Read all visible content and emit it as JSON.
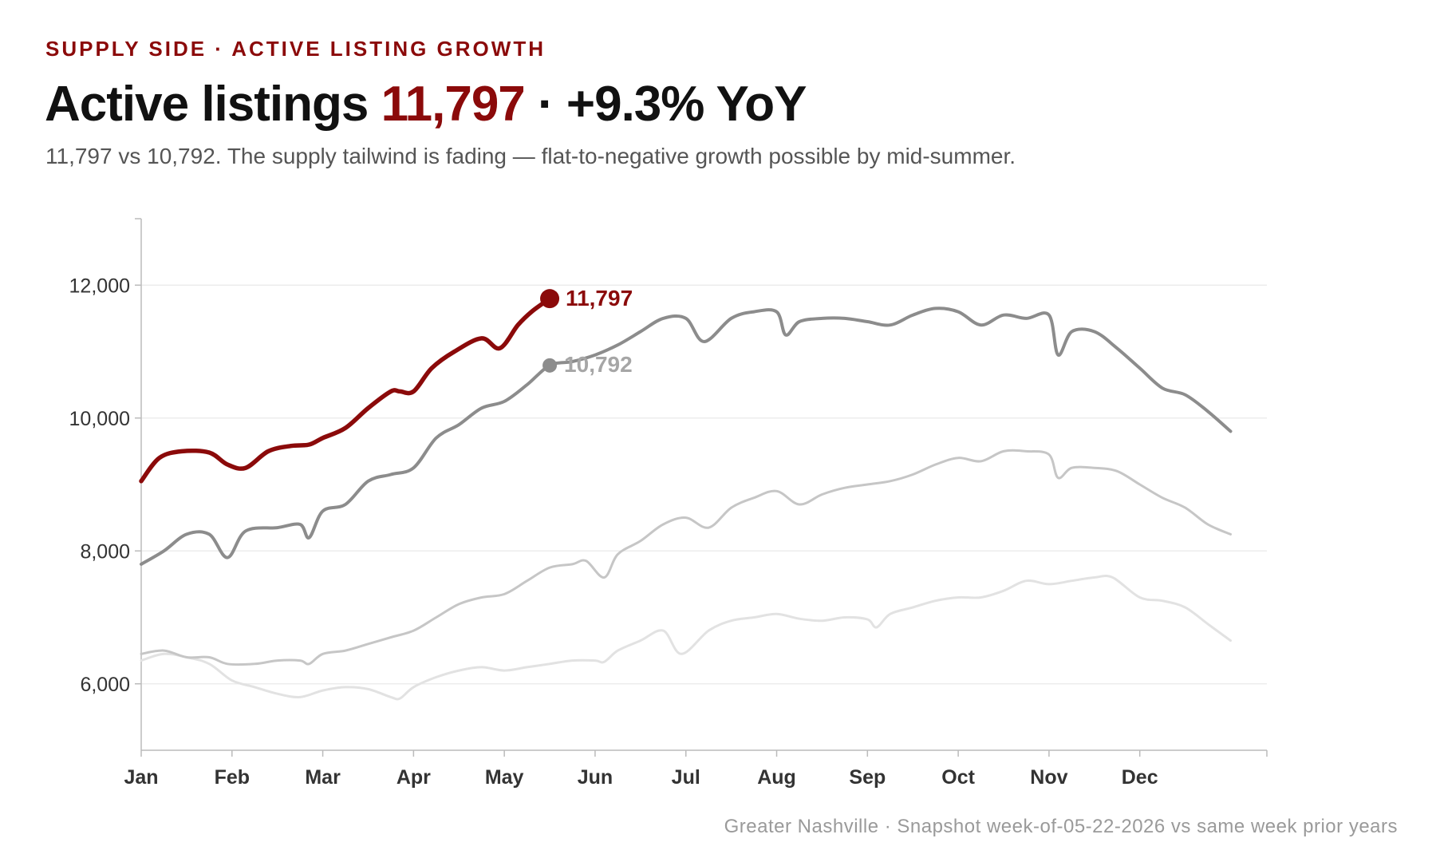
{
  "header": {
    "kicker": "SUPPLY SIDE · ACTIVE LISTING GROWTH",
    "title_prefix": "Active listings ",
    "title_value": "11,797",
    "title_suffix": " · +9.3% YoY",
    "subtitle": "11,797 vs 10,792. The supply tailwind is fading — flat-to-negative growth possible by mid-summer."
  },
  "footer": {
    "note": "Greater Nashville · Snapshot week-of-05-22-2026 vs same week prior years"
  },
  "chart_data": {
    "type": "line",
    "title": "",
    "xlabel": "",
    "ylabel": "",
    "ylim": [
      5000,
      13000
    ],
    "xlim": [
      0,
      12.4
    ],
    "yticks": [
      6000,
      8000,
      10000,
      12000
    ],
    "yticks_labels": [
      "6,000",
      "8,000",
      "10,000",
      "12,000"
    ],
    "xticks": [
      0,
      1,
      2,
      3,
      4,
      5,
      6,
      7,
      8,
      9,
      10,
      11
    ],
    "xticks_labels": [
      "Jan",
      "Feb",
      "Mar",
      "Apr",
      "May",
      "Jun",
      "Jul",
      "Aug",
      "Sep",
      "Oct",
      "Nov",
      "Dec"
    ],
    "grid": "horizontal",
    "legend": "none",
    "colors": {
      "current": "#8b0a0a",
      "prior_1": "#8c8c8c",
      "prior_2": "#c6c6c6",
      "prior_3": "#e2e2e2",
      "grid": "#ececec",
      "axis": "#bbbbbb"
    },
    "series": [
      {
        "key": "prior_3",
        "x": [
          0,
          0.25,
          0.5,
          0.75,
          1,
          1.25,
          1.5,
          1.75,
          2,
          2.25,
          2.5,
          2.75,
          2.85,
          3,
          3.25,
          3.5,
          3.75,
          4,
          4.25,
          4.5,
          4.75,
          5,
          5.1,
          5.25,
          5.5,
          5.75,
          5.95,
          6.25,
          6.5,
          6.75,
          7,
          7.25,
          7.5,
          7.75,
          8,
          8.1,
          8.25,
          8.5,
          8.75,
          9,
          9.25,
          9.5,
          9.75,
          10,
          10.25,
          10.5,
          10.7,
          11,
          11.25,
          11.5,
          11.75,
          12
        ],
        "y": [
          6350,
          6450,
          6400,
          6300,
          6050,
          5950,
          5850,
          5800,
          5900,
          5950,
          5920,
          5800,
          5780,
          5950,
          6100,
          6200,
          6250,
          6200,
          6250,
          6300,
          6350,
          6350,
          6330,
          6500,
          6650,
          6800,
          6450,
          6800,
          6950,
          7000,
          7050,
          6980,
          6950,
          7000,
          6970,
          6850,
          7050,
          7150,
          7250,
          7300,
          7300,
          7400,
          7550,
          7500,
          7550,
          7600,
          7600,
          7300,
          7250,
          7150,
          6900,
          6650
        ]
      },
      {
        "key": "prior_2",
        "x": [
          0,
          0.25,
          0.5,
          0.75,
          0.95,
          1.25,
          1.5,
          1.75,
          1.85,
          2,
          2.25,
          2.5,
          2.75,
          3,
          3.25,
          3.5,
          3.75,
          4,
          4.25,
          4.5,
          4.75,
          4.9,
          5.1,
          5.25,
          5.5,
          5.75,
          6,
          6.25,
          6.5,
          6.75,
          7,
          7.25,
          7.5,
          7.75,
          8,
          8.25,
          8.5,
          8.75,
          9,
          9.25,
          9.5,
          9.75,
          10,
          10.1,
          10.25,
          10.5,
          10.75,
          11,
          11.25,
          11.5,
          11.75,
          12
        ],
        "y": [
          6450,
          6500,
          6400,
          6400,
          6300,
          6300,
          6350,
          6350,
          6300,
          6450,
          6500,
          6600,
          6700,
          6800,
          7000,
          7200,
          7300,
          7350,
          7550,
          7750,
          7800,
          7850,
          7600,
          7950,
          8150,
          8400,
          8500,
          8350,
          8650,
          8800,
          8900,
          8700,
          8850,
          8950,
          9000,
          9050,
          9150,
          9300,
          9400,
          9350,
          9500,
          9500,
          9450,
          9100,
          9250,
          9250,
          9200,
          9000,
          8800,
          8650,
          8400,
          8250
        ]
      },
      {
        "key": "prior_1",
        "label": "10,792",
        "x": [
          0,
          0.25,
          0.5,
          0.75,
          0.95,
          1.15,
          1.5,
          1.75,
          1.85,
          2,
          2.25,
          2.5,
          2.75,
          3,
          3.25,
          3.5,
          3.75,
          4,
          4.25,
          4.5,
          4.75,
          5,
          5.25,
          5.5,
          5.75,
          6,
          6.2,
          6.5,
          6.75,
          7,
          7.1,
          7.25,
          7.5,
          7.75,
          8,
          8.25,
          8.5,
          8.75,
          9,
          9.25,
          9.5,
          9.75,
          10,
          10.1,
          10.25,
          10.5,
          10.75,
          11,
          11.25,
          11.5,
          11.75,
          12
        ],
        "y": [
          7800,
          8000,
          8250,
          8250,
          7900,
          8300,
          8350,
          8400,
          8200,
          8600,
          8700,
          9050,
          9150,
          9250,
          9700,
          9900,
          10150,
          10250,
          10500,
          10792,
          10850,
          10950,
          11100,
          11300,
          11500,
          11500,
          11150,
          11500,
          11600,
          11600,
          11250,
          11450,
          11500,
          11500,
          11450,
          11400,
          11550,
          11650,
          11600,
          11400,
          11550,
          11500,
          11550,
          10950,
          11300,
          11300,
          11050,
          10750,
          10450,
          10350,
          10100,
          9800
        ],
        "end_index": 19
      },
      {
        "key": "current",
        "label": "11,797",
        "x": [
          0,
          0.2,
          0.45,
          0.75,
          0.95,
          1.15,
          1.4,
          1.65,
          1.85,
          2,
          2.25,
          2.5,
          2.75,
          2.85,
          3,
          3.2,
          3.45,
          3.75,
          3.95,
          4.15,
          4.3,
          4.5
        ],
        "y": [
          9050,
          9400,
          9500,
          9480,
          9300,
          9250,
          9500,
          9580,
          9600,
          9700,
          9850,
          10150,
          10400,
          10400,
          10400,
          10750,
          11000,
          11200,
          11050,
          11400,
          11600,
          11797
        ]
      }
    ]
  }
}
